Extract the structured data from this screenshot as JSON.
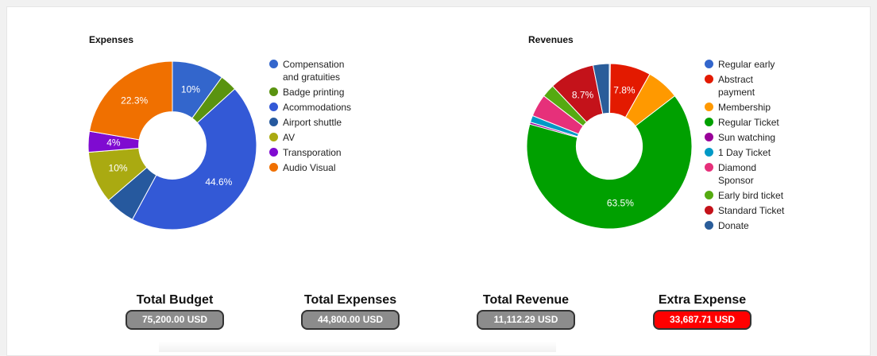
{
  "chart_data": [
    {
      "type": "pie",
      "title": "Expenses",
      "legend": "right",
      "series": [
        {
          "label": "Compensation and gratuities",
          "value": 10,
          "color": "#3366cc",
          "shown_label": "10%"
        },
        {
          "label": "Badge printing",
          "value": 3.3,
          "color": "#5a9310",
          "shown_label": ""
        },
        {
          "label": "Acommodations",
          "value": 44.6,
          "color": "#3359d6",
          "shown_label": "44.6%"
        },
        {
          "label": "Airport shuttle",
          "value": 5.8,
          "color": "#26599e",
          "shown_label": ""
        },
        {
          "label": "AV",
          "value": 10,
          "color": "#aaaa11",
          "shown_label": "10%"
        },
        {
          "label": "Transporation",
          "value": 4,
          "color": "#7f0bd1",
          "shown_label": "4%"
        },
        {
          "label": "Audio Visual",
          "value": 22.3,
          "color": "#f07000",
          "shown_label": "22.3%"
        }
      ]
    },
    {
      "type": "pie",
      "title": "Revenues",
      "legend": "right",
      "series": [
        {
          "label": "Regular early",
          "value": 0.2,
          "color": "#3366cc",
          "shown_label": ""
        },
        {
          "label": "Abstract payment",
          "value": 7.8,
          "color": "#e31a00",
          "shown_label": "7.8%"
        },
        {
          "label": "Membership",
          "value": 6.3,
          "color": "#ff9900",
          "shown_label": ""
        },
        {
          "label": "Regular Ticket",
          "value": 63.5,
          "color": "#00a000",
          "shown_label": "63.5%"
        },
        {
          "label": "Sun watching",
          "value": 0.4,
          "color": "#990099",
          "shown_label": ""
        },
        {
          "label": "1 Day Ticket",
          "value": 1.3,
          "color": "#0099c6",
          "shown_label": ""
        },
        {
          "label": "Diamond Sponsor",
          "value": 4.3,
          "color": "#e6307a",
          "shown_label": ""
        },
        {
          "label": "Early bird ticket",
          "value": 2.5,
          "color": "#55aa11",
          "shown_label": ""
        },
        {
          "label": "Standard Ticket",
          "value": 8.7,
          "color": "#c4121a",
          "shown_label": "8.7%"
        },
        {
          "label": "Donate",
          "value": 3.1,
          "color": "#2a5d9a",
          "shown_label": ""
        }
      ]
    }
  ],
  "summary": [
    {
      "title": "Total Budget",
      "value": "75,200.00 USD",
      "color": "#8c8c8c"
    },
    {
      "title": "Total Expenses",
      "value": "44,800.00 USD",
      "color": "#8c8c8c"
    },
    {
      "title": "Total Revenue",
      "value": "11,112.29 USD",
      "color": "#8c8c8c"
    },
    {
      "title": "Extra Expense",
      "value": "33,687.71 USD",
      "color": "#ff0000"
    }
  ]
}
